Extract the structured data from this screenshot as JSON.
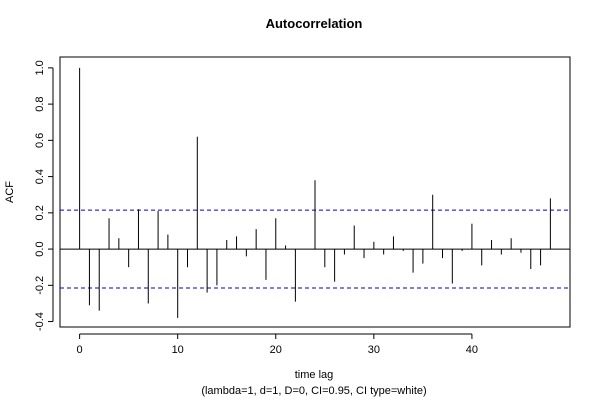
{
  "chart_data": {
    "type": "bar",
    "title": "Autocorrelation",
    "xlabel": "time lag",
    "ylabel": "ACF",
    "subtitle": "(lambda=1, d=1, D=0, CI=0.95, CI type=white)",
    "xlim": [
      -2,
      50
    ],
    "ylim": [
      -0.43,
      1.06
    ],
    "x_ticks": [
      0,
      10,
      20,
      30,
      40
    ],
    "y_ticks": [
      -0.4,
      -0.2,
      0.0,
      0.2,
      0.4,
      0.6,
      0.8,
      1.0
    ],
    "x_tick_labels": [
      "0",
      "10",
      "20",
      "30",
      "40"
    ],
    "y_tick_labels": [
      "-0.4",
      "-0.2",
      "0.0",
      "0.2",
      "0.4",
      "0.6",
      "0.8",
      "1.0"
    ],
    "confidence_bound": 0.215,
    "x": [
      0,
      1,
      2,
      3,
      4,
      5,
      6,
      7,
      8,
      9,
      10,
      11,
      12,
      13,
      14,
      15,
      16,
      17,
      18,
      19,
      20,
      21,
      22,
      23,
      24,
      25,
      26,
      27,
      28,
      29,
      30,
      31,
      32,
      33,
      34,
      35,
      36,
      37,
      38,
      39,
      40,
      41,
      42,
      43,
      44,
      45,
      46,
      47,
      48
    ],
    "values": [
      1.0,
      -0.31,
      -0.34,
      0.17,
      0.06,
      -0.1,
      0.22,
      -0.3,
      0.21,
      0.08,
      -0.38,
      -0.1,
      0.62,
      -0.24,
      -0.2,
      0.05,
      0.07,
      -0.04,
      0.11,
      -0.17,
      0.17,
      0.02,
      -0.29,
      0.0,
      0.38,
      -0.1,
      -0.18,
      -0.03,
      0.13,
      -0.05,
      0.04,
      -0.03,
      0.07,
      -0.01,
      -0.13,
      -0.08,
      0.3,
      -0.05,
      -0.19,
      -0.01,
      0.14,
      -0.09,
      0.05,
      -0.03,
      0.06,
      -0.02,
      -0.11,
      -0.09,
      0.28
    ],
    "colors": {
      "bars": "#000000",
      "ci": "#0000cc",
      "frame": "#000000"
    }
  }
}
